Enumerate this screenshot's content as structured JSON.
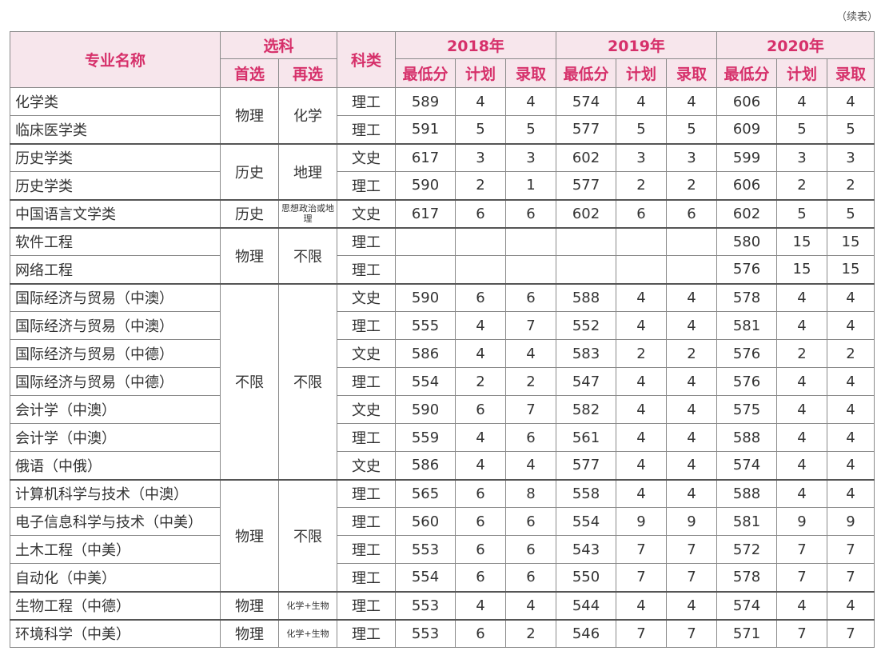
{
  "note": "（续表）",
  "headers": {
    "major": "专业名称",
    "subject_choice": "选科",
    "first": "首选",
    "second": "再选",
    "category": "科类",
    "years": [
      "2018年",
      "2019年",
      "2020年"
    ],
    "sub": [
      "最低分",
      "计划",
      "录取"
    ]
  },
  "groups": [
    {
      "first": "物理",
      "second": "化学",
      "rows": [
        {
          "name": "化学类",
          "cat": "理工",
          "y2018": [
            "589",
            "4",
            "4"
          ],
          "y2019": [
            "574",
            "4",
            "4"
          ],
          "y2020": [
            "606",
            "4",
            "4"
          ]
        },
        {
          "name": "临床医学类",
          "cat": "理工",
          "y2018": [
            "591",
            "5",
            "5"
          ],
          "y2019": [
            "577",
            "5",
            "5"
          ],
          "y2020": [
            "609",
            "5",
            "5"
          ]
        }
      ]
    },
    {
      "first": "历史",
      "second": "地理",
      "rows": [
        {
          "name": "历史学类",
          "cat": "文史",
          "y2018": [
            "617",
            "3",
            "3"
          ],
          "y2019": [
            "602",
            "3",
            "3"
          ],
          "y2020": [
            "599",
            "3",
            "3"
          ]
        },
        {
          "name": "历史学类",
          "cat": "理工",
          "y2018": [
            "590",
            "2",
            "1"
          ],
          "y2019": [
            "577",
            "2",
            "2"
          ],
          "y2020": [
            "606",
            "2",
            "2"
          ]
        }
      ]
    },
    {
      "first": "历史",
      "second": "思想政治或地理",
      "rows": [
        {
          "name": "中国语言文学类",
          "cat": "文史",
          "y2018": [
            "617",
            "6",
            "6"
          ],
          "y2019": [
            "602",
            "6",
            "6"
          ],
          "y2020": [
            "602",
            "5",
            "5"
          ]
        }
      ]
    },
    {
      "first": "物理",
      "second": "不限",
      "rows": [
        {
          "name": "软件工程",
          "cat": "理工",
          "y2018": [
            "",
            "",
            ""
          ],
          "y2019": [
            "",
            "",
            ""
          ],
          "y2020": [
            "580",
            "15",
            "15"
          ]
        },
        {
          "name": "网络工程",
          "cat": "理工",
          "y2018": [
            "",
            "",
            ""
          ],
          "y2019": [
            "",
            "",
            ""
          ],
          "y2020": [
            "576",
            "15",
            "15"
          ]
        }
      ]
    },
    {
      "first": "不限",
      "second": "不限",
      "rows": [
        {
          "name": "国际经济与贸易（中澳）",
          "cat": "文史",
          "y2018": [
            "590",
            "6",
            "6"
          ],
          "y2019": [
            "588",
            "4",
            "4"
          ],
          "y2020": [
            "578",
            "4",
            "4"
          ]
        },
        {
          "name": "国际经济与贸易（中澳）",
          "cat": "理工",
          "y2018": [
            "555",
            "4",
            "7"
          ],
          "y2019": [
            "552",
            "4",
            "4"
          ],
          "y2020": [
            "581",
            "4",
            "4"
          ]
        },
        {
          "name": "国际经济与贸易（中德）",
          "cat": "文史",
          "y2018": [
            "586",
            "4",
            "4"
          ],
          "y2019": [
            "583",
            "2",
            "2"
          ],
          "y2020": [
            "576",
            "2",
            "2"
          ]
        },
        {
          "name": "国际经济与贸易（中德）",
          "cat": "理工",
          "y2018": [
            "554",
            "2",
            "2"
          ],
          "y2019": [
            "547",
            "4",
            "4"
          ],
          "y2020": [
            "576",
            "4",
            "4"
          ]
        },
        {
          "name": "会计学（中澳）",
          "cat": "文史",
          "y2018": [
            "590",
            "6",
            "7"
          ],
          "y2019": [
            "582",
            "4",
            "4"
          ],
          "y2020": [
            "575",
            "4",
            "4"
          ]
        },
        {
          "name": "会计学（中澳）",
          "cat": "理工",
          "y2018": [
            "559",
            "4",
            "6"
          ],
          "y2019": [
            "561",
            "4",
            "4"
          ],
          "y2020": [
            "588",
            "4",
            "4"
          ]
        },
        {
          "name": "俄语（中俄）",
          "cat": "文史",
          "y2018": [
            "586",
            "4",
            "4"
          ],
          "y2019": [
            "577",
            "4",
            "4"
          ],
          "y2020": [
            "574",
            "4",
            "4"
          ]
        }
      ]
    },
    {
      "first": "物理",
      "second": "不限",
      "rows": [
        {
          "name": "计算机科学与技术（中澳）",
          "cat": "理工",
          "y2018": [
            "565",
            "6",
            "8"
          ],
          "y2019": [
            "558",
            "4",
            "4"
          ],
          "y2020": [
            "588",
            "4",
            "4"
          ]
        },
        {
          "name": "电子信息科学与技术（中美）",
          "cat": "理工",
          "y2018": [
            "560",
            "6",
            "6"
          ],
          "y2019": [
            "554",
            "9",
            "9"
          ],
          "y2020": [
            "581",
            "9",
            "9"
          ]
        },
        {
          "name": "土木工程（中美）",
          "cat": "理工",
          "y2018": [
            "553",
            "6",
            "6"
          ],
          "y2019": [
            "543",
            "7",
            "7"
          ],
          "y2020": [
            "572",
            "7",
            "7"
          ]
        },
        {
          "name": "自动化（中美）",
          "cat": "理工",
          "y2018": [
            "554",
            "6",
            "6"
          ],
          "y2019": [
            "550",
            "7",
            "7"
          ],
          "y2020": [
            "578",
            "7",
            "7"
          ]
        }
      ]
    },
    {
      "first": "物理",
      "second": "化学+生物",
      "rows": [
        {
          "name": "生物工程（中德）",
          "cat": "理工",
          "y2018": [
            "553",
            "4",
            "4"
          ],
          "y2019": [
            "544",
            "4",
            "4"
          ],
          "y2020": [
            "574",
            "4",
            "4"
          ]
        }
      ]
    },
    {
      "first": "物理",
      "second": "化学+生物",
      "rows": [
        {
          "name": "环境科学（中美）",
          "cat": "理工",
          "y2018": [
            "553",
            "6",
            "2"
          ],
          "y2019": [
            "546",
            "7",
            "7"
          ],
          "y2020": [
            "571",
            "7",
            "7"
          ]
        }
      ]
    }
  ]
}
